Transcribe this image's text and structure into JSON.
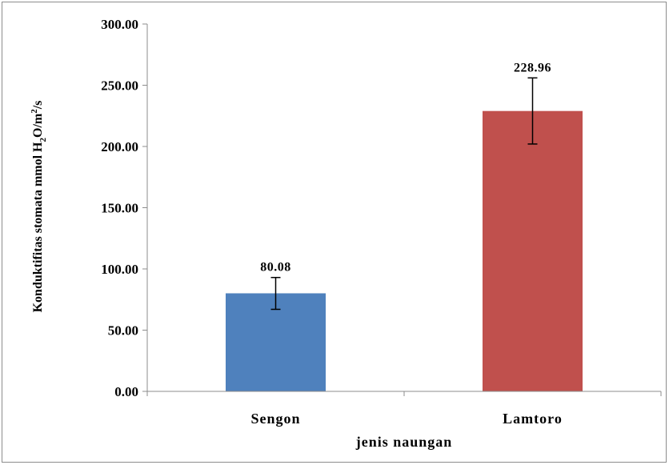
{
  "chart_data": {
    "type": "bar",
    "title": "",
    "xlabel": "jenis naungan",
    "ylabel": {
      "prefix": "Konduktifitas  stomata mmol H",
      "sub": "2",
      "mid": "O/m",
      "sup": "2",
      "suffix": "/s"
    },
    "categories": [
      "Sengon",
      "Lamtoro"
    ],
    "values": [
      80.08,
      228.96
    ],
    "value_labels": [
      "80.08",
      "228.96"
    ],
    "error_bars": [
      {
        "low": 67,
        "high": 93
      },
      {
        "low": 202,
        "high": 256
      }
    ],
    "colors": [
      "#4f81bd",
      "#c0504d"
    ],
    "ylim": [
      0,
      300
    ],
    "yticks": [
      0,
      50,
      100,
      150,
      200,
      250,
      300
    ],
    "ytick_labels": [
      "0.00",
      "50.00",
      "100.00",
      "150.00",
      "200.00",
      "250.00",
      "300.00"
    ],
    "grid": false,
    "legend": "none"
  }
}
